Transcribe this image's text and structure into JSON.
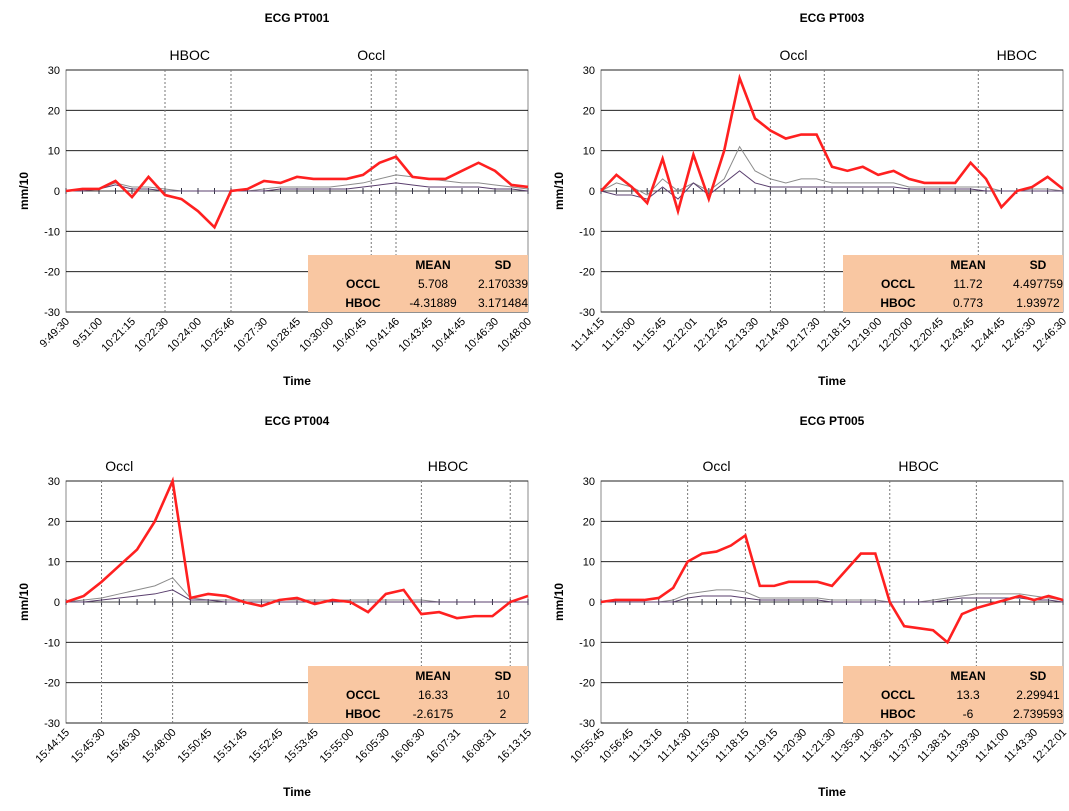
{
  "chart_data": [
    {
      "type": "line",
      "title": "ECG PT001",
      "x_label": "Time",
      "y_label": "mm/10",
      "categories": [
        "9:49:30",
        null,
        "9:51:00",
        null,
        "10:21:15",
        null,
        "10:22:30",
        null,
        "10:24:00",
        null,
        "10:25:46",
        null,
        "10:27:30",
        null,
        "10:28:45",
        null,
        "10:30:00",
        null,
        "10:40:45",
        null,
        "10:41:46",
        null,
        "10:43:45",
        null,
        "10:44:45",
        null,
        "10:46:30",
        null,
        "10:48:00"
      ],
      "series": [
        {
          "color": "#8c8c8c",
          "values": [
            0,
            0.5,
            0.5,
            2,
            1,
            1,
            0.5,
            0,
            0,
            0,
            0,
            0,
            0.5,
            1,
            1,
            1,
            1,
            1.5,
            2,
            3,
            4,
            3.5,
            3,
            2.5,
            2,
            2,
            1.5,
            1,
            0.5
          ]
        },
        {
          "color": "#5a3f6e",
          "values": [
            0,
            0,
            0.5,
            1.5,
            0.5,
            0.5,
            0,
            0,
            0,
            0,
            0,
            0,
            0,
            0.5,
            0.5,
            0.5,
            0.5,
            0.5,
            1,
            1.5,
            2,
            1.5,
            1,
            1,
            1,
            1,
            0.5,
            0.5,
            0
          ]
        },
        {
          "color": "#ff2020",
          "values": [
            0,
            0.5,
            0.5,
            2.5,
            -1.5,
            3.5,
            -1,
            -2,
            -5,
            -9,
            0,
            0.5,
            2.5,
            2,
            3.5,
            3,
            3,
            3,
            4,
            7,
            8.5,
            3.5,
            3,
            3,
            5,
            7,
            5,
            1.5,
            1
          ]
        }
      ],
      "markers": [
        6,
        10,
        18.5,
        20
      ],
      "annotations": [
        {
          "text": "HBOC",
          "x": 7.5
        },
        {
          "text": "Occl",
          "x": 18.5
        }
      ],
      "ylim": [
        -30,
        30
      ],
      "yticks": [
        -30,
        -20,
        -10,
        0,
        10,
        20,
        30
      ],
      "grid": true,
      "table": {
        "header": [
          "MEAN",
          "SD"
        ],
        "rows": [
          [
            "OCCL",
            5.708,
            2.170339
          ],
          [
            "HBOC",
            -4.31889,
            3.171484
          ]
        ]
      }
    },
    {
      "type": "line",
      "title": "ECG PT003",
      "x_label": "Time",
      "y_label": "mm/10",
      "categories": [
        "11:14:15",
        null,
        "11:15:00",
        null,
        "11:15:45",
        null,
        "12:12:01",
        null,
        "12:12:45",
        null,
        "12:13:30",
        null,
        "12:14:30",
        null,
        "12:17:30",
        null,
        "12:18:15",
        null,
        "12:19:00",
        null,
        "12:20:00",
        null,
        "12:20:45",
        null,
        "12:43:45",
        null,
        "12:44:45",
        null,
        "12:45:30",
        null,
        "12:46:30"
      ],
      "series": [
        {
          "color": "#8c8c8c",
          "values": [
            0,
            2,
            1,
            -1,
            3,
            0,
            2,
            0,
            3,
            11,
            5,
            3,
            2,
            3,
            3,
            2,
            2,
            2,
            2,
            2,
            1,
            1,
            1,
            1,
            1,
            1,
            0,
            0,
            0.5,
            0.5,
            0
          ]
        },
        {
          "color": "#5a3f6e",
          "values": [
            0,
            -1,
            -1,
            -2,
            1,
            -2,
            2,
            -1,
            2,
            5,
            2,
            1,
            1,
            1,
            1,
            1,
            1,
            1,
            1,
            1,
            0.5,
            0.5,
            0.5,
            0.5,
            0.5,
            0,
            0,
            0,
            0,
            0,
            0
          ]
        },
        {
          "color": "#ff2020",
          "values": [
            0,
            4,
            1,
            -3,
            8,
            -5,
            9,
            -2,
            10,
            28,
            18,
            15,
            13,
            14,
            14,
            6,
            5,
            6,
            4,
            5,
            3,
            2,
            2,
            2,
            7,
            3,
            -4,
            0,
            1,
            3.5,
            0.5
          ]
        }
      ],
      "markers": [
        11,
        14.5,
        24.5
      ],
      "annotations": [
        {
          "text": "Occl",
          "x": 12.5
        },
        {
          "text": "HBOC",
          "x": 27
        }
      ],
      "ylim": [
        -30,
        30
      ],
      "yticks": [
        -30,
        -20,
        -10,
        0,
        10,
        20,
        30
      ],
      "grid": true,
      "table": {
        "header": [
          "MEAN",
          "SD"
        ],
        "rows": [
          [
            "OCCL",
            11.72,
            4.497759
          ],
          [
            "HBOC",
            0.773,
            1.93972
          ]
        ]
      }
    },
    {
      "type": "line",
      "title": "ECG PT004",
      "x_label": "Time",
      "y_label": "mm/10",
      "categories": [
        "15:44:15",
        null,
        "15:45:30",
        null,
        "15:46:30",
        null,
        "15:48:00",
        null,
        "15:50:45",
        null,
        "15:51:45",
        null,
        "15:52:45",
        null,
        "15:53:45",
        null,
        "15:55:00",
        null,
        "16:05:30",
        null,
        "16:06:30",
        null,
        "16:07:31",
        null,
        "16:08:31",
        null,
        "16:13:15"
      ],
      "series": [
        {
          "color": "#8c8c8c",
          "values": [
            0,
            0.5,
            1,
            2,
            3,
            4,
            6,
            1,
            0.5,
            0.5,
            0.5,
            0.5,
            0.5,
            0.5,
            0.5,
            0.5,
            0.5,
            0.5,
            0.5,
            0.5,
            0.5,
            0,
            0,
            0,
            0,
            0,
            0
          ]
        },
        {
          "color": "#5a3f6e",
          "values": [
            0,
            0,
            0.5,
            1,
            1.5,
            2,
            3,
            0.5,
            0.5,
            0,
            0,
            0,
            0,
            0,
            0,
            0,
            0,
            0,
            0,
            0,
            0,
            0,
            0,
            0,
            0,
            0,
            0
          ]
        },
        {
          "color": "#ff2020",
          "values": [
            0,
            1.5,
            5,
            9,
            13,
            20,
            30,
            1,
            2,
            1.5,
            0,
            -1,
            0.5,
            1,
            -0.5,
            0.5,
            0,
            -2.5,
            2,
            3,
            -3,
            -2.5,
            -4,
            -3.5,
            -3.5,
            0,
            1.5
          ]
        }
      ],
      "markers": [
        2,
        6,
        20,
        25
      ],
      "annotations": [
        {
          "text": "Occl",
          "x": 3
        },
        {
          "text": "HBOC",
          "x": 21.5
        }
      ],
      "ylim": [
        -30,
        30
      ],
      "yticks": [
        -30,
        -20,
        -10,
        0,
        10,
        20,
        30
      ],
      "grid": true,
      "table": {
        "header": [
          "MEAN",
          "SD"
        ],
        "rows": [
          [
            "OCCL",
            16.33,
            10
          ],
          [
            "HBOC",
            -2.6175,
            2
          ]
        ]
      }
    },
    {
      "type": "line",
      "title": "ECG PT005",
      "x_label": "Time",
      "y_label": "mm/10",
      "categories": [
        "10:55:45",
        null,
        "10:56:45",
        null,
        "11:13:16",
        null,
        "11:14:30",
        null,
        "11:15:30",
        null,
        "11:18:15",
        null,
        "11:19:15",
        null,
        "11:20:30",
        null,
        "11:21:30",
        null,
        "11:35:30",
        null,
        "11:36:31",
        null,
        "11:37:30",
        null,
        "11:38:31",
        null,
        "11:39:30",
        null,
        "11:41:00",
        null,
        "11:43:30",
        null,
        "12:12:01"
      ],
      "series": [
        {
          "color": "#8c8c8c",
          "values": [
            0,
            0,
            0,
            0,
            0,
            0.5,
            2,
            2.5,
            3,
            3,
            2.5,
            1,
            1,
            1,
            1,
            1,
            0.5,
            0.5,
            0.5,
            0.5,
            0,
            0,
            0,
            0.5,
            1,
            1.5,
            2,
            2,
            2,
            2,
            1.5,
            1,
            0.5
          ]
        },
        {
          "color": "#5a3f6e",
          "values": [
            0,
            0,
            0,
            0,
            0,
            0,
            1,
            1.5,
            1.5,
            1.5,
            1,
            0.5,
            0.5,
            0.5,
            0.5,
            0.5,
            0,
            0,
            0,
            0,
            0,
            0,
            0,
            0,
            0.5,
            1,
            1,
            1,
            1,
            1,
            0.5,
            0.5,
            0
          ]
        },
        {
          "color": "#ff2020",
          "values": [
            0,
            0.5,
            0.5,
            0.5,
            1,
            3.5,
            10,
            12,
            12.5,
            14,
            16.5,
            4,
            4,
            5,
            5,
            5,
            4,
            8,
            12,
            12,
            0,
            -6,
            -6.5,
            -7,
            -10,
            -3,
            -1.5,
            -0.5,
            0.5,
            1.5,
            0.5,
            1.5,
            0.5
          ]
        }
      ],
      "markers": [
        6,
        10,
        20,
        26
      ],
      "annotations": [
        {
          "text": "Occl",
          "x": 8
        },
        {
          "text": "HBOC",
          "x": 22
        }
      ],
      "ylim": [
        -30,
        30
      ],
      "yticks": [
        -30,
        -20,
        -10,
        0,
        10,
        20,
        30
      ],
      "grid": true,
      "table": {
        "header": [
          "MEAN",
          "SD"
        ],
        "rows": [
          [
            "OCCL",
            13.3,
            2.29941
          ],
          [
            "HBOC",
            -6,
            2.739593
          ]
        ]
      }
    }
  ]
}
